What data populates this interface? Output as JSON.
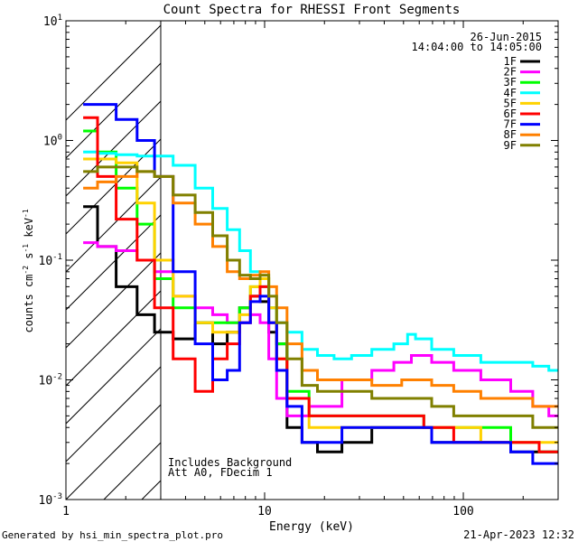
{
  "chart_data": {
    "type": "line",
    "title": "Count Spectra for RHESSI Front Segments",
    "xlabel": "Energy (keV)",
    "ylabel_parts": [
      "counts cm",
      "-2",
      " s",
      "-1",
      " keV",
      "-1"
    ],
    "xscale": "log",
    "yscale": "log",
    "xlim": [
      1,
      300
    ],
    "ylim": [
      0.001,
      10
    ],
    "x_ticks": [
      {
        "value": 1,
        "label": "1"
      },
      {
        "value": 10,
        "label": "10"
      },
      {
        "value": 100,
        "label": "100"
      }
    ],
    "y_ticks": [
      {
        "value": 0.001,
        "base": "10",
        "exp": "-3"
      },
      {
        "value": 0.01,
        "base": "10",
        "exp": "-2"
      },
      {
        "value": 0.1,
        "base": "10",
        "exp": "-1"
      },
      {
        "value": 1,
        "base": "10",
        "exp": "0"
      },
      {
        "value": 10,
        "base": "10",
        "exp": "1"
      }
    ],
    "date": "26-Jun-2015",
    "time_range": "14:04:00 to 14:05:00",
    "hatched_region": {
      "x_from": 1,
      "x_to": 3
    },
    "annotations": [
      "Includes Background",
      "Att A0, FDecim 1"
    ],
    "series": [
      {
        "name": "1F",
        "color": "#000000",
        "points": [
          [
            1.3,
            0.28
          ],
          [
            1.6,
            0.13
          ],
          [
            2.0,
            0.06
          ],
          [
            2.6,
            0.035
          ],
          [
            3.0,
            0.025
          ],
          [
            4.0,
            0.022
          ],
          [
            5.0,
            0.03
          ],
          [
            6.0,
            0.02
          ],
          [
            7.0,
            0.025
          ],
          [
            8.0,
            0.04
          ],
          [
            9.0,
            0.05
          ],
          [
            10.0,
            0.045
          ],
          [
            11.0,
            0.025
          ],
          [
            12.0,
            0.02
          ],
          [
            14.0,
            0.004
          ],
          [
            17.0,
            0.003
          ],
          [
            20.0,
            0.0025
          ],
          [
            30.0,
            0.003
          ],
          [
            40.0,
            0.004
          ],
          [
            60.0,
            0.004
          ],
          [
            80.0,
            0.003
          ],
          [
            100.0,
            0.003
          ],
          [
            150.0,
            0.003
          ],
          [
            200.0,
            0.0025
          ],
          [
            250.0,
            0.0025
          ],
          [
            290.0,
            0.0025
          ]
        ]
      },
      {
        "name": "2F",
        "color": "#ff00ff",
        "points": [
          [
            1.3,
            0.14
          ],
          [
            1.6,
            0.13
          ],
          [
            2.0,
            0.12
          ],
          [
            2.6,
            0.1
          ],
          [
            3.0,
            0.08
          ],
          [
            4.0,
            0.05
          ],
          [
            5.0,
            0.04
          ],
          [
            6.0,
            0.035
          ],
          [
            7.0,
            0.03
          ],
          [
            8.0,
            0.03
          ],
          [
            9.0,
            0.035
          ],
          [
            10.0,
            0.03
          ],
          [
            11.0,
            0.015
          ],
          [
            12.0,
            0.007
          ],
          [
            14.0,
            0.005
          ],
          [
            20.0,
            0.006
          ],
          [
            30.0,
            0.01
          ],
          [
            40.0,
            0.012
          ],
          [
            50.0,
            0.014
          ],
          [
            60.0,
            0.016
          ],
          [
            80.0,
            0.014
          ],
          [
            100.0,
            0.012
          ],
          [
            150.0,
            0.01
          ],
          [
            200.0,
            0.008
          ],
          [
            250.0,
            0.006
          ],
          [
            290.0,
            0.005
          ]
        ]
      },
      {
        "name": "3F",
        "color": "#00ff00",
        "points": [
          [
            1.3,
            1.2
          ],
          [
            1.6,
            0.8
          ],
          [
            2.0,
            0.4
          ],
          [
            2.6,
            0.2
          ],
          [
            3.0,
            0.07
          ],
          [
            4.0,
            0.04
          ],
          [
            5.0,
            0.03
          ],
          [
            6.0,
            0.03
          ],
          [
            7.0,
            0.03
          ],
          [
            8.0,
            0.04
          ],
          [
            9.0,
            0.06
          ],
          [
            10.0,
            0.07
          ],
          [
            11.0,
            0.04
          ],
          [
            12.0,
            0.02
          ],
          [
            14.0,
            0.008
          ],
          [
            20.0,
            0.005
          ],
          [
            30.0,
            0.005
          ],
          [
            50.0,
            0.005
          ],
          [
            80.0,
            0.004
          ],
          [
            100.0,
            0.004
          ],
          [
            150.0,
            0.004
          ],
          [
            200.0,
            0.003
          ],
          [
            290.0,
            0.0025
          ]
        ]
      },
      {
        "name": "4F",
        "color": "#00ffff",
        "points": [
          [
            1.3,
            0.8
          ],
          [
            1.6,
            0.78
          ],
          [
            2.0,
            0.76
          ],
          [
            2.6,
            0.74
          ],
          [
            3.0,
            0.74
          ],
          [
            4.0,
            0.62
          ],
          [
            5.0,
            0.4
          ],
          [
            6.0,
            0.27
          ],
          [
            7.0,
            0.18
          ],
          [
            8.0,
            0.12
          ],
          [
            9.0,
            0.08
          ],
          [
            10.0,
            0.06
          ],
          [
            11.0,
            0.04
          ],
          [
            12.0,
            0.03
          ],
          [
            14.0,
            0.025
          ],
          [
            17.0,
            0.018
          ],
          [
            20.0,
            0.016
          ],
          [
            25.0,
            0.015
          ],
          [
            30.0,
            0.016
          ],
          [
            40.0,
            0.018
          ],
          [
            50.0,
            0.02
          ],
          [
            55.0,
            0.024
          ],
          [
            60.0,
            0.022
          ],
          [
            80.0,
            0.018
          ],
          [
            100.0,
            0.016
          ],
          [
            150.0,
            0.014
          ],
          [
            200.0,
            0.014
          ],
          [
            250.0,
            0.013
          ],
          [
            290.0,
            0.012
          ]
        ]
      },
      {
        "name": "5F",
        "color": "#ffd200",
        "points": [
          [
            1.3,
            0.7
          ],
          [
            1.6,
            0.7
          ],
          [
            2.0,
            0.65
          ],
          [
            2.6,
            0.3
          ],
          [
            3.0,
            0.1
          ],
          [
            4.0,
            0.05
          ],
          [
            5.0,
            0.03
          ],
          [
            6.0,
            0.025
          ],
          [
            7.0,
            0.025
          ],
          [
            8.0,
            0.035
          ],
          [
            9.0,
            0.06
          ],
          [
            10.0,
            0.07
          ],
          [
            11.0,
            0.04
          ],
          [
            12.0,
            0.015
          ],
          [
            14.0,
            0.007
          ],
          [
            20.0,
            0.004
          ],
          [
            30.0,
            0.004
          ],
          [
            50.0,
            0.004
          ],
          [
            80.0,
            0.004
          ],
          [
            100.0,
            0.004
          ],
          [
            150.0,
            0.003
          ],
          [
            200.0,
            0.003
          ],
          [
            290.0,
            0.003
          ]
        ]
      },
      {
        "name": "6F",
        "color": "#ff0000",
        "points": [
          [
            1.3,
            1.55
          ],
          [
            1.6,
            0.5
          ],
          [
            2.0,
            0.22
          ],
          [
            2.6,
            0.1
          ],
          [
            3.0,
            0.04
          ],
          [
            4.0,
            0.015
          ],
          [
            5.0,
            0.008
          ],
          [
            6.0,
            0.015
          ],
          [
            7.0,
            0.02
          ],
          [
            8.0,
            0.03
          ],
          [
            9.0,
            0.05
          ],
          [
            10.0,
            0.06
          ],
          [
            11.0,
            0.03
          ],
          [
            12.0,
            0.015
          ],
          [
            14.0,
            0.007
          ],
          [
            20.0,
            0.005
          ],
          [
            30.0,
            0.005
          ],
          [
            50.0,
            0.005
          ],
          [
            80.0,
            0.004
          ],
          [
            100.0,
            0.003
          ],
          [
            150.0,
            0.003
          ],
          [
            200.0,
            0.003
          ],
          [
            290.0,
            0.0025
          ]
        ]
      },
      {
        "name": "7F",
        "color": "#0000ff",
        "points": [
          [
            1.3,
            2.0
          ],
          [
            1.6,
            2.0
          ],
          [
            2.0,
            1.5
          ],
          [
            2.6,
            1.0
          ],
          [
            3.0,
            0.5
          ],
          [
            4.0,
            0.08
          ],
          [
            5.0,
            0.02
          ],
          [
            6.0,
            0.01
          ],
          [
            7.0,
            0.012
          ],
          [
            8.0,
            0.03
          ],
          [
            9.0,
            0.045
          ],
          [
            10.0,
            0.05
          ],
          [
            11.0,
            0.03
          ],
          [
            12.0,
            0.012
          ],
          [
            14.0,
            0.006
          ],
          [
            17.0,
            0.003
          ],
          [
            20.0,
            0.003
          ],
          [
            30.0,
            0.004
          ],
          [
            40.0,
            0.004
          ],
          [
            60.0,
            0.004
          ],
          [
            80.0,
            0.003
          ],
          [
            100.0,
            0.003
          ],
          [
            150.0,
            0.003
          ],
          [
            200.0,
            0.0025
          ],
          [
            250.0,
            0.002
          ],
          [
            290.0,
            0.002
          ]
        ]
      },
      {
        "name": "8F",
        "color": "#ff8000",
        "points": [
          [
            1.3,
            0.4
          ],
          [
            1.6,
            0.45
          ],
          [
            2.0,
            0.5
          ],
          [
            2.6,
            0.55
          ],
          [
            3.0,
            0.5
          ],
          [
            4.0,
            0.3
          ],
          [
            5.0,
            0.2
          ],
          [
            6.0,
            0.13
          ],
          [
            7.0,
            0.08
          ],
          [
            8.0,
            0.07
          ],
          [
            9.0,
            0.075
          ],
          [
            10.0,
            0.08
          ],
          [
            11.0,
            0.06
          ],
          [
            12.0,
            0.04
          ],
          [
            14.0,
            0.02
          ],
          [
            17.0,
            0.012
          ],
          [
            20.0,
            0.01
          ],
          [
            30.0,
            0.01
          ],
          [
            40.0,
            0.009
          ],
          [
            60.0,
            0.01
          ],
          [
            80.0,
            0.009
          ],
          [
            100.0,
            0.008
          ],
          [
            150.0,
            0.007
          ],
          [
            200.0,
            0.007
          ],
          [
            250.0,
            0.006
          ],
          [
            290.0,
            0.006
          ]
        ]
      },
      {
        "name": "9F",
        "color": "#808000",
        "points": [
          [
            1.3,
            0.55
          ],
          [
            1.6,
            0.6
          ],
          [
            2.0,
            0.6
          ],
          [
            2.6,
            0.55
          ],
          [
            3.0,
            0.5
          ],
          [
            4.0,
            0.35
          ],
          [
            5.0,
            0.25
          ],
          [
            6.0,
            0.16
          ],
          [
            7.0,
            0.1
          ],
          [
            8.0,
            0.075
          ],
          [
            9.0,
            0.07
          ],
          [
            10.0,
            0.075
          ],
          [
            11.0,
            0.05
          ],
          [
            12.0,
            0.03
          ],
          [
            14.0,
            0.015
          ],
          [
            17.0,
            0.009
          ],
          [
            20.0,
            0.008
          ],
          [
            30.0,
            0.008
          ],
          [
            40.0,
            0.007
          ],
          [
            60.0,
            0.007
          ],
          [
            80.0,
            0.006
          ],
          [
            100.0,
            0.005
          ],
          [
            150.0,
            0.005
          ],
          [
            200.0,
            0.005
          ],
          [
            250.0,
            0.004
          ],
          [
            290.0,
            0.004
          ]
        ]
      }
    ]
  },
  "footer": {
    "generator": "Generated by hsi_min_spectra_plot.pro",
    "timestamp": "21-Apr-2023 12:32"
  }
}
